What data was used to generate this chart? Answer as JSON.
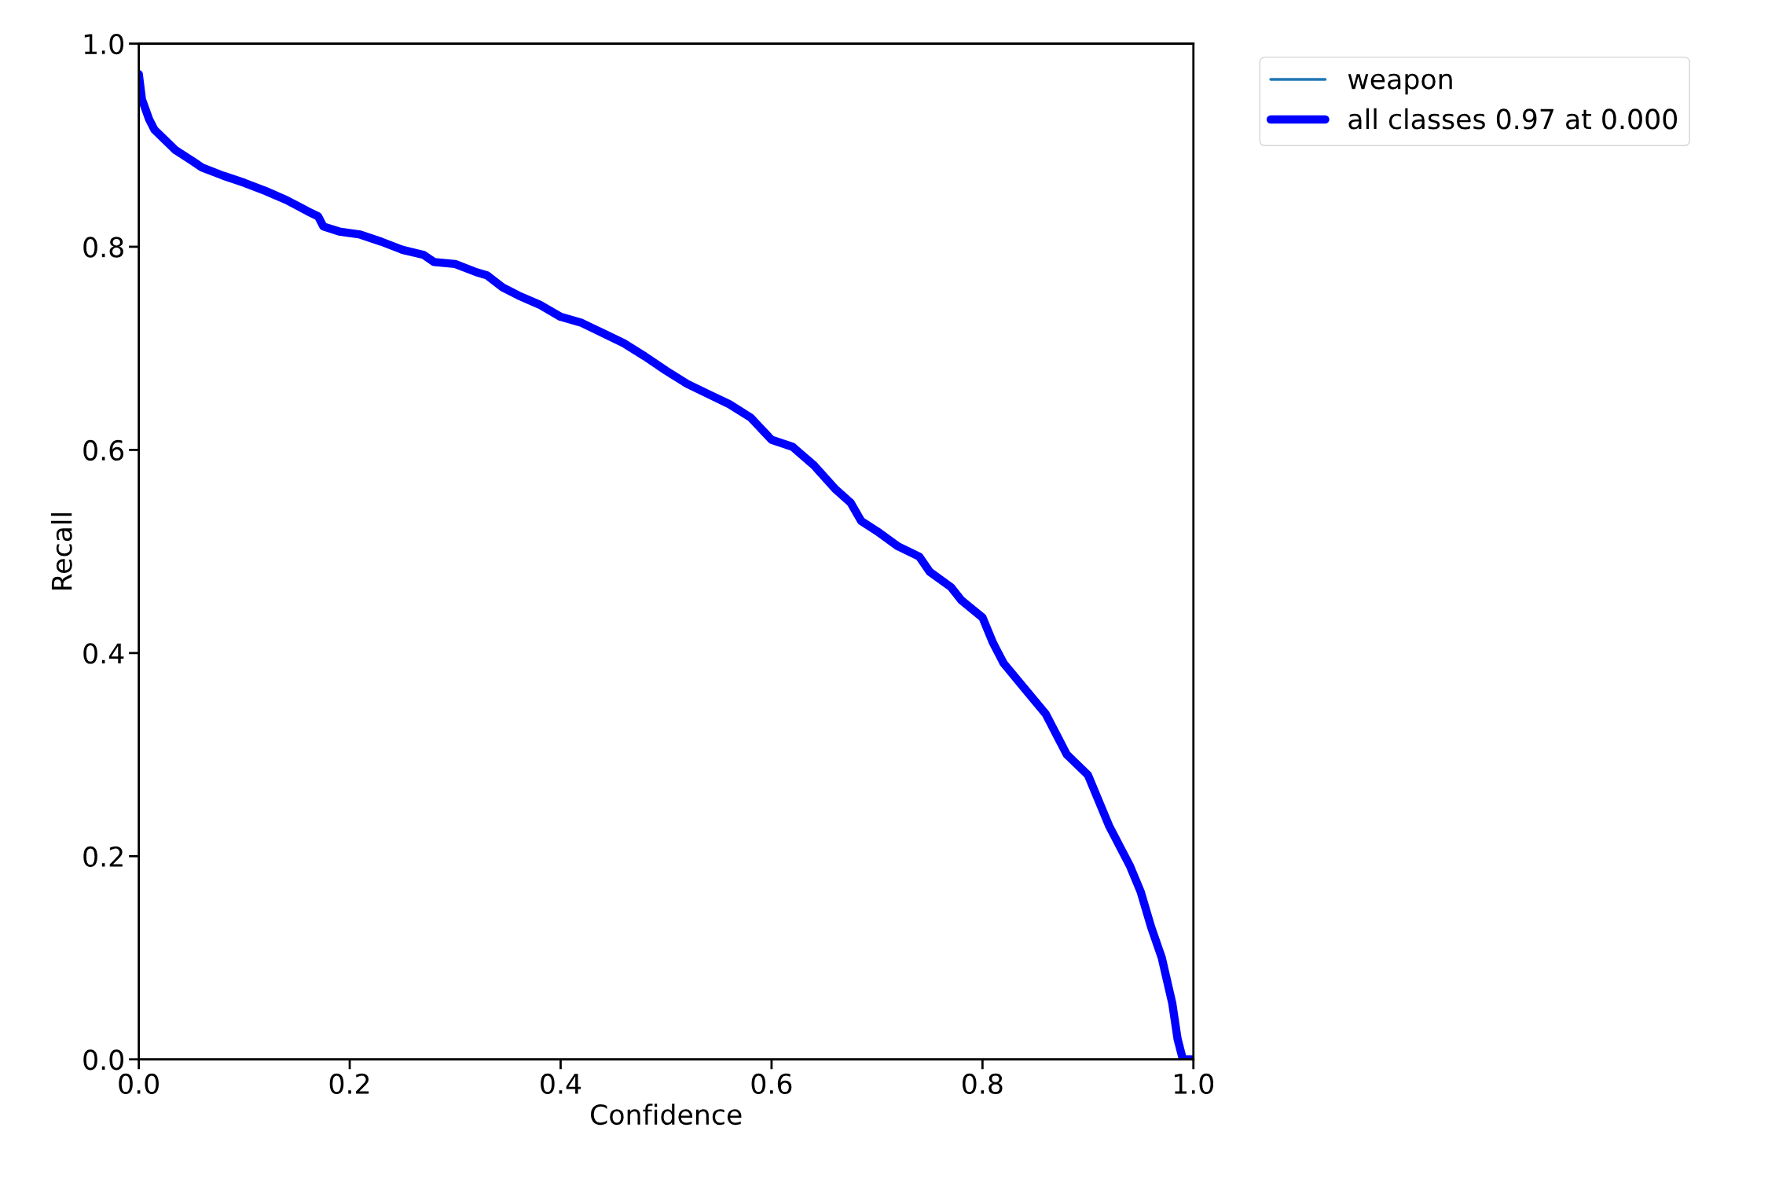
{
  "chart_data": {
    "type": "line",
    "xlabel": "Confidence",
    "ylabel": "Recall",
    "xlim": [
      0,
      1
    ],
    "ylim": [
      0,
      1
    ],
    "xticks": [
      {
        "value": 0,
        "label": "0.0"
      },
      0.2,
      0.4,
      0.6,
      0.8,
      {
        "value": 1,
        "label": "1.0"
      }
    ],
    "yticks": [
      {
        "value": 0,
        "label": "0.0"
      },
      0.2,
      0.4,
      0.6,
      0.8,
      {
        "value": 1,
        "label": "1.0"
      }
    ],
    "grid": false,
    "legend": "top right",
    "marker": "none",
    "line_style": "solid",
    "x": [
      0.0,
      0.003,
      0.01,
      0.015,
      0.025,
      0.035,
      0.05,
      0.06,
      0.08,
      0.1,
      0.12,
      0.14,
      0.16,
      0.17,
      0.175,
      0.19,
      0.21,
      0.23,
      0.25,
      0.27,
      0.28,
      0.3,
      0.32,
      0.33,
      0.345,
      0.36,
      0.38,
      0.4,
      0.42,
      0.44,
      0.46,
      0.48,
      0.5,
      0.52,
      0.54,
      0.56,
      0.58,
      0.6,
      0.62,
      0.64,
      0.66,
      0.675,
      0.685,
      0.7,
      0.72,
      0.74,
      0.75,
      0.77,
      0.78,
      0.8,
      0.81,
      0.82,
      0.84,
      0.86,
      0.87,
      0.88,
      0.9,
      0.91,
      0.92,
      0.93,
      0.94,
      0.95,
      0.96,
      0.97,
      0.98,
      0.985,
      0.99,
      1.0
    ],
    "series": [
      {
        "name": "weapon",
        "color": "#1f77b4",
        "values": [
          null,
          null,
          null,
          null,
          null,
          null,
          null,
          null,
          null,
          null,
          null,
          null,
          null,
          null,
          null,
          null,
          null,
          null,
          null,
          null,
          null,
          null,
          null,
          null,
          null,
          null,
          null,
          null,
          null,
          null,
          null,
          null,
          null,
          null,
          null,
          null,
          null,
          null,
          null,
          null,
          null,
          null,
          null,
          null,
          null,
          null,
          null,
          null,
          null,
          null,
          null,
          null,
          null,
          null,
          null,
          null,
          null,
          null,
          null,
          null,
          null,
          null,
          null,
          null,
          null,
          null,
          null,
          null
        ]
      },
      {
        "name": "all classes 0.97 at 0.000",
        "color": "#0000ff",
        "values": [
          0.97,
          0.945,
          0.925,
          0.915,
          0.905,
          0.895,
          0.885,
          0.878,
          0.87,
          0.863,
          0.855,
          0.846,
          0.835,
          0.83,
          0.82,
          0.815,
          0.812,
          0.805,
          0.797,
          0.792,
          0.785,
          0.783,
          0.775,
          0.772,
          0.76,
          0.752,
          0.743,
          0.731,
          0.725,
          0.715,
          0.705,
          0.692,
          0.678,
          0.665,
          0.655,
          0.645,
          0.632,
          0.61,
          0.603,
          0.585,
          0.562,
          0.548,
          0.53,
          0.52,
          0.505,
          0.495,
          0.48,
          0.465,
          0.452,
          0.435,
          0.41,
          0.39,
          0.365,
          0.34,
          0.32,
          0.3,
          0.28,
          0.255,
          0.23,
          0.21,
          0.19,
          0.165,
          0.13,
          0.1,
          0.055,
          0.02,
          0.0,
          0.0
        ]
      }
    ]
  }
}
